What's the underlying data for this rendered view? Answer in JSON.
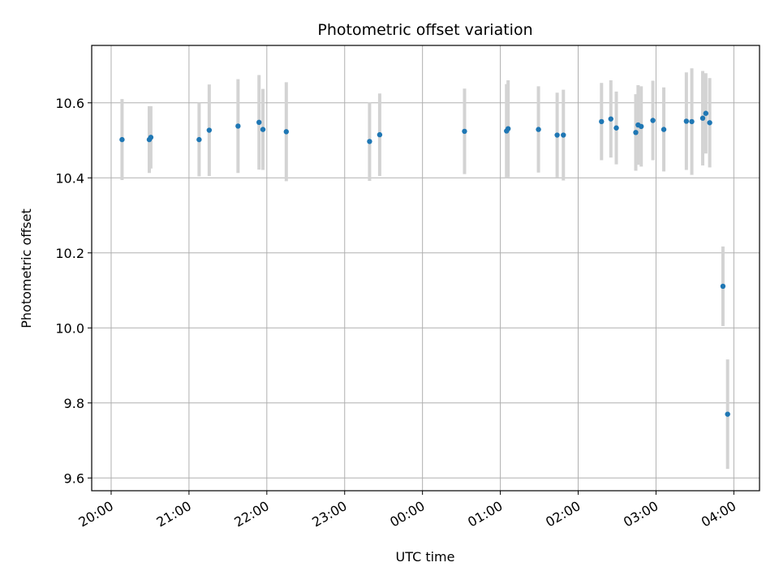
{
  "chart_data": {
    "type": "scatter",
    "title": "Photometric offset variation",
    "xlabel": "UTC time",
    "ylabel": "Photometric offset",
    "x_unit": "UTC time (hours since 20:00)",
    "xlim": [
      -0.25,
      8.33
    ],
    "ylim": [
      9.566,
      10.753
    ],
    "grid": true,
    "x_ticks": [
      {
        "value": 0,
        "label": "20:00"
      },
      {
        "value": 1,
        "label": "21:00"
      },
      {
        "value": 2,
        "label": "22:00"
      },
      {
        "value": 3,
        "label": "23:00"
      },
      {
        "value": 4,
        "label": "00:00"
      },
      {
        "value": 5,
        "label": "01:00"
      },
      {
        "value": 6,
        "label": "02:00"
      },
      {
        "value": 7,
        "label": "03:00"
      },
      {
        "value": 8,
        "label": "04:00"
      }
    ],
    "y_ticks": [
      {
        "value": 9.6,
        "label": "9.6"
      },
      {
        "value": 9.8,
        "label": "9.8"
      },
      {
        "value": 10.0,
        "label": "10.0"
      },
      {
        "value": 10.2,
        "label": "10.2"
      },
      {
        "value": 10.4,
        "label": "10.4"
      },
      {
        "value": 10.6,
        "label": "10.6"
      }
    ],
    "marker_color": "#1f77b4",
    "errorbar_color": "#d3d3d3",
    "points": [
      {
        "x": 0.14,
        "y": 10.502,
        "err": 0.108
      },
      {
        "x": 0.49,
        "y": 10.502,
        "err": 0.089
      },
      {
        "x": 0.51,
        "y": 10.508,
        "err": 0.083
      },
      {
        "x": 1.13,
        "y": 10.502,
        "err": 0.098
      },
      {
        "x": 1.26,
        "y": 10.527,
        "err": 0.122
      },
      {
        "x": 1.63,
        "y": 10.538,
        "err": 0.125
      },
      {
        "x": 1.9,
        "y": 10.548,
        "err": 0.126
      },
      {
        "x": 1.95,
        "y": 10.529,
        "err": 0.108
      },
      {
        "x": 2.25,
        "y": 10.523,
        "err": 0.132
      },
      {
        "x": 3.32,
        "y": 10.497,
        "err": 0.105
      },
      {
        "x": 3.45,
        "y": 10.515,
        "err": 0.11
      },
      {
        "x": 4.54,
        "y": 10.524,
        "err": 0.114
      },
      {
        "x": 5.08,
        "y": 10.525,
        "err": 0.125
      },
      {
        "x": 5.1,
        "y": 10.531,
        "err": 0.129
      },
      {
        "x": 5.49,
        "y": 10.529,
        "err": 0.115
      },
      {
        "x": 5.73,
        "y": 10.514,
        "err": 0.113
      },
      {
        "x": 5.81,
        "y": 10.514,
        "err": 0.121
      },
      {
        "x": 6.3,
        "y": 10.55,
        "err": 0.103
      },
      {
        "x": 6.42,
        "y": 10.557,
        "err": 0.103
      },
      {
        "x": 6.49,
        "y": 10.533,
        "err": 0.097
      },
      {
        "x": 6.74,
        "y": 10.521,
        "err": 0.102
      },
      {
        "x": 6.77,
        "y": 10.541,
        "err": 0.106
      },
      {
        "x": 6.81,
        "y": 10.537,
        "err": 0.107
      },
      {
        "x": 6.96,
        "y": 10.553,
        "err": 0.106
      },
      {
        "x": 7.1,
        "y": 10.529,
        "err": 0.112
      },
      {
        "x": 7.39,
        "y": 10.551,
        "err": 0.13
      },
      {
        "x": 7.46,
        "y": 10.55,
        "err": 0.142
      },
      {
        "x": 7.6,
        "y": 10.559,
        "err": 0.126
      },
      {
        "x": 7.64,
        "y": 10.572,
        "err": 0.107
      },
      {
        "x": 7.69,
        "y": 10.547,
        "err": 0.119
      },
      {
        "x": 7.86,
        "y": 10.111,
        "err": 0.106
      },
      {
        "x": 7.92,
        "y": 9.77,
        "err": 0.146
      }
    ]
  }
}
